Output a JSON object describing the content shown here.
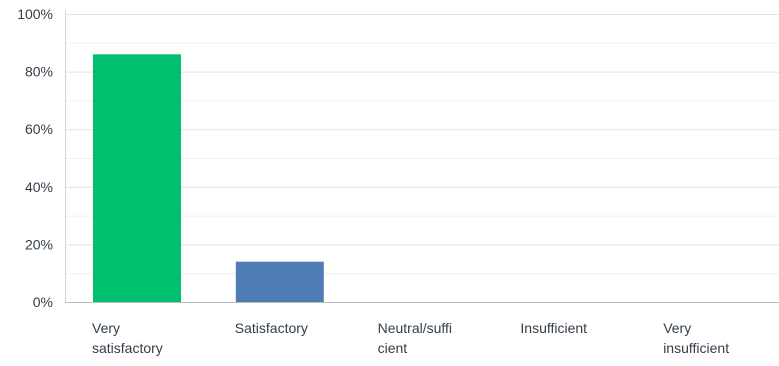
{
  "chart_data": {
    "type": "bar",
    "categories": [
      [
        "Very",
        "satisfactory"
      ],
      [
        "Satisfactory"
      ],
      [
        "Neutral/suffi",
        "cient"
      ],
      [
        "Insufficient"
      ],
      [
        "Very",
        "insufficient"
      ]
    ],
    "values": [
      86,
      14,
      0,
      0,
      0
    ],
    "colors": [
      "#00bf6f",
      "#507cb6",
      "#f05b24",
      "#7d5ea8",
      "#ffae33"
    ],
    "yticks": [
      "0%",
      "20%",
      "40%",
      "60%",
      "80%",
      "100%"
    ],
    "ylim": [
      0,
      100
    ],
    "minor_gridlines": true,
    "title": "",
    "xlabel": "",
    "ylabel": ""
  }
}
